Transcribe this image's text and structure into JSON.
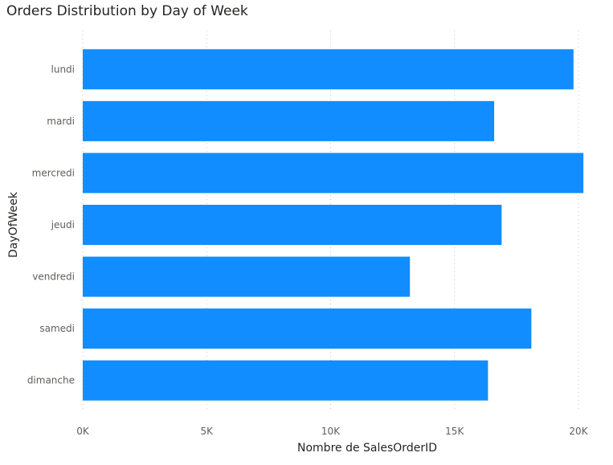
{
  "chart_data": {
    "type": "bar",
    "orientation": "horizontal",
    "title": "Orders Distribution by Day of Week",
    "xlabel": "Nombre de SalesOrderID",
    "ylabel": "DayOfWeek",
    "categories": [
      "lundi",
      "mardi",
      "mercredi",
      "jeudi",
      "vendredi",
      "samedi",
      "dimanche"
    ],
    "values": [
      19800,
      16600,
      20200,
      16900,
      13200,
      18100,
      16350
    ],
    "xlim": [
      0,
      20000
    ],
    "xticks": [
      0,
      5000,
      10000,
      15000,
      20000
    ],
    "xtick_labels": [
      "0K",
      "5K",
      "10K",
      "15K",
      "20K"
    ],
    "bar_color": "#118DFF",
    "grid": "vertical-dotted"
  }
}
